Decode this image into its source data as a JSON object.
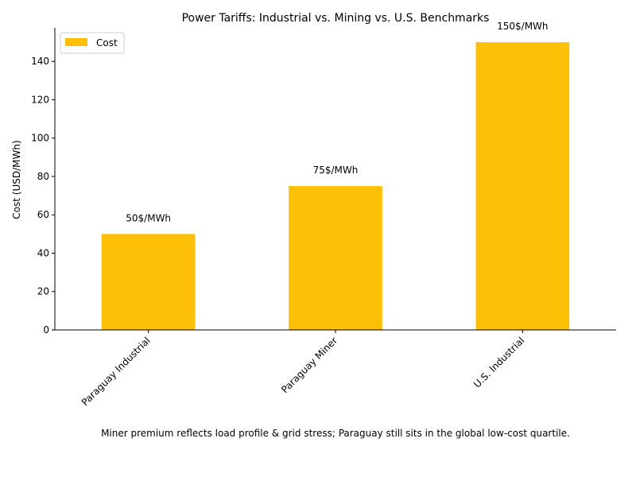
{
  "chart_data": {
    "type": "bar",
    "title": "Power Tariffs: Industrial vs. Mining vs. U.S. Benchmarks",
    "xlabel": "",
    "ylabel": "Cost (USD/MWh)",
    "categories": [
      "Paraguay Industrial",
      "Paraguay Miner",
      "U.S. Industrial"
    ],
    "series": [
      {
        "name": "Cost",
        "values": [
          50,
          75,
          150
        ],
        "color": "#FDC006"
      }
    ],
    "data_labels": [
      "50$/MWh",
      "75$/MWh",
      "150$/MWh"
    ],
    "ylim": [
      0,
      157.5
    ],
    "yticks": [
      0,
      20,
      40,
      60,
      80,
      100,
      120,
      140
    ],
    "grid": false,
    "legend_position": "top-left"
  },
  "caption": "Miner premium reflects load profile & grid stress; Paraguay still sits in the global low-cost quartile."
}
